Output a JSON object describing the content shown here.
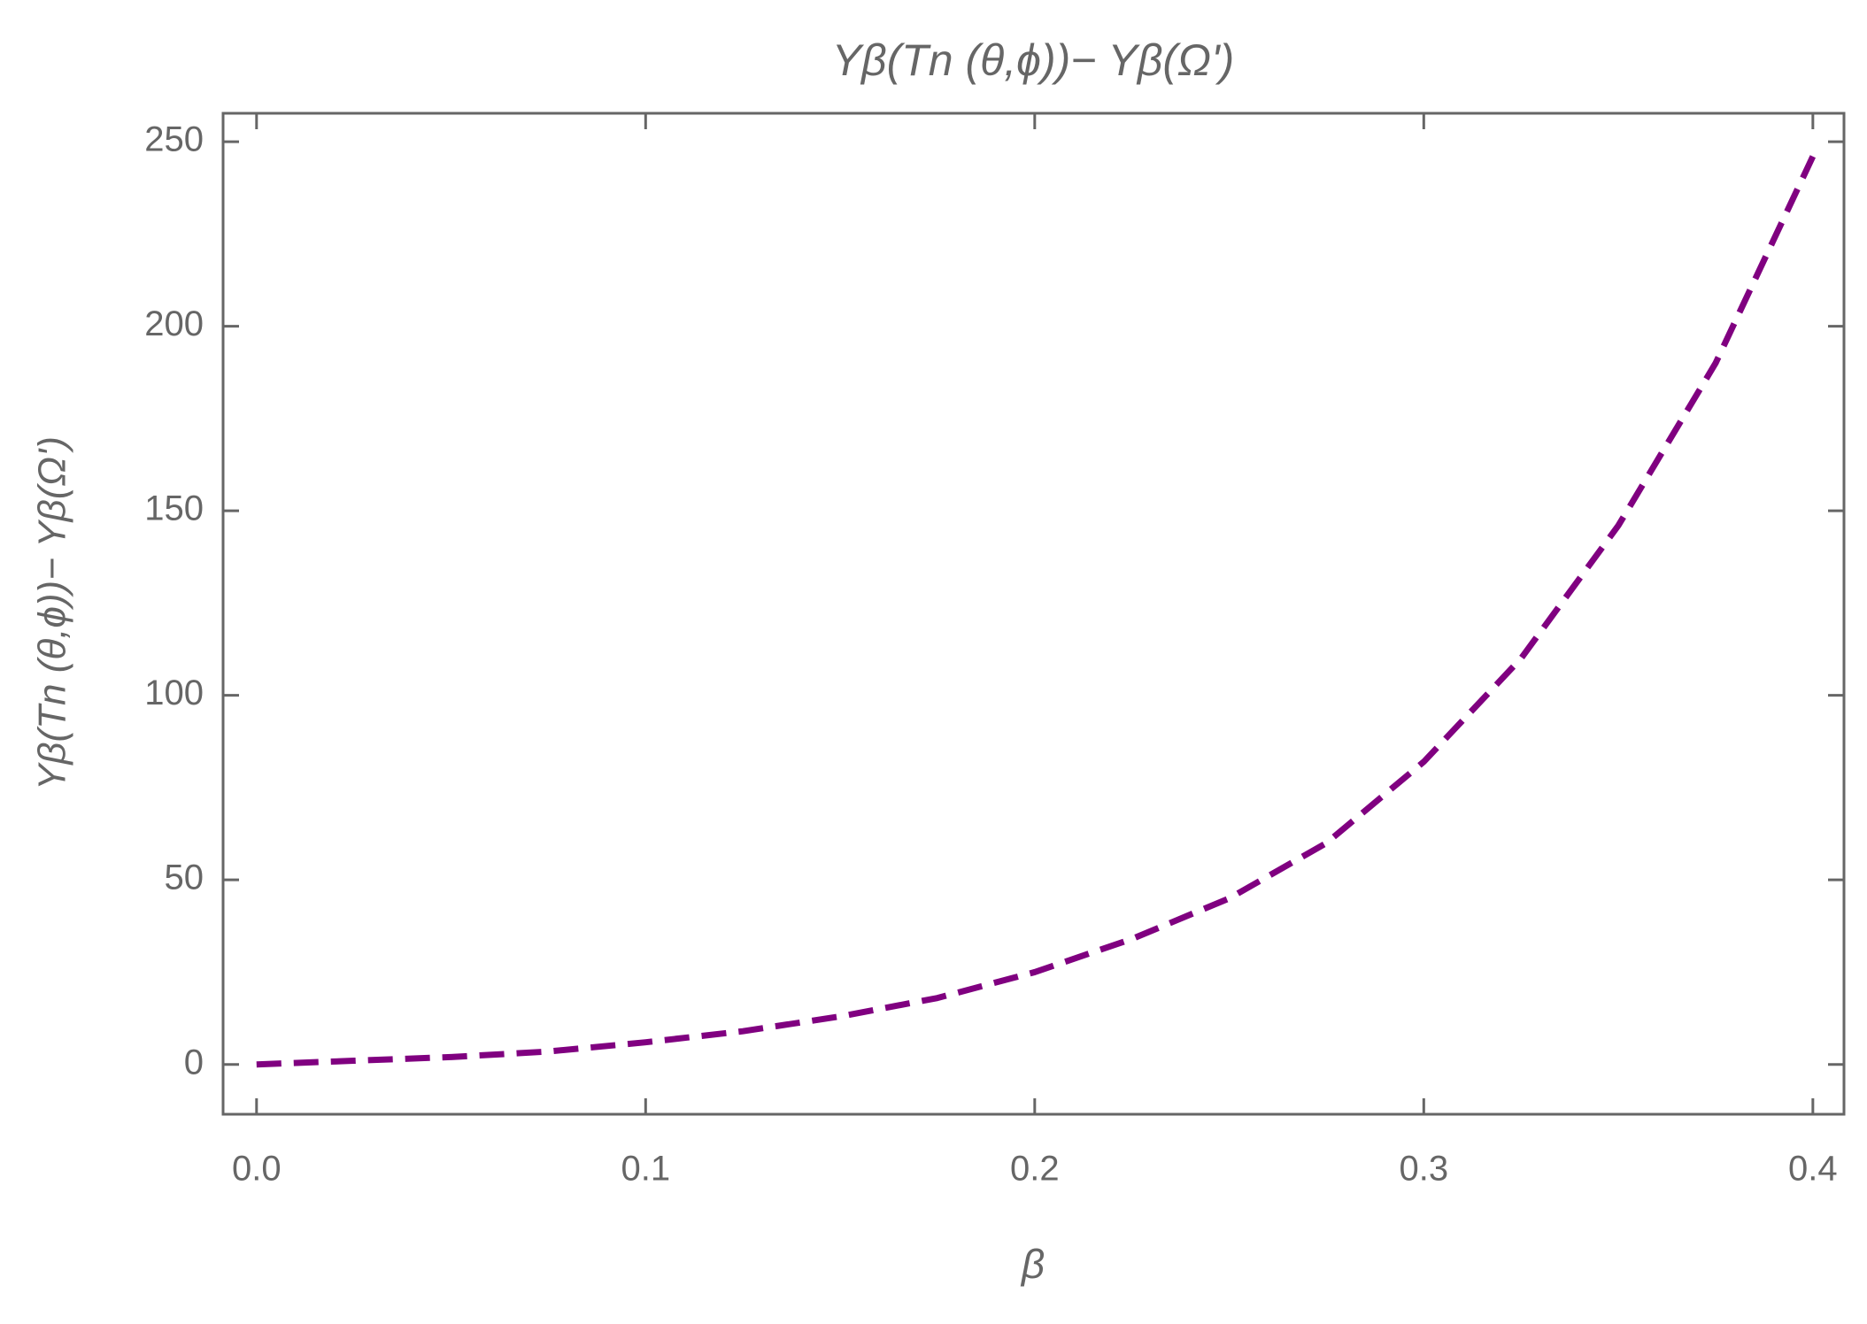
{
  "chart_data": {
    "type": "line",
    "title": "Yβ(Tn (θ,ϕ))− Yβ(Ω')",
    "x_label": "β",
    "y_label": "Yβ(Tn (θ,ϕ))− Yβ(Ω')",
    "x": [
      0,
      0.025,
      0.05,
      0.075,
      0.1,
      0.125,
      0.15,
      0.175,
      0.2,
      0.225,
      0.25,
      0.275,
      0.3,
      0.325,
      0.35,
      0.375,
      0.4
    ],
    "series": [
      {
        "color": "#800080",
        "dashed": true,
        "values": [
          0,
          1,
          2,
          3.5,
          6,
          9,
          13,
          18,
          25,
          34,
          45,
          60,
          82,
          110,
          146,
          190,
          246
        ]
      }
    ],
    "xlim": [
      -0.0086,
      0.408
    ],
    "ylim": [
      -13.5,
      257.7
    ],
    "xticks": [
      {
        "value": 0,
        "label": "0.0"
      },
      0.1,
      0.2,
      0.3,
      0.4
    ],
    "yticks": [
      0,
      50,
      100,
      150,
      200,
      250
    ],
    "grid": false
  }
}
